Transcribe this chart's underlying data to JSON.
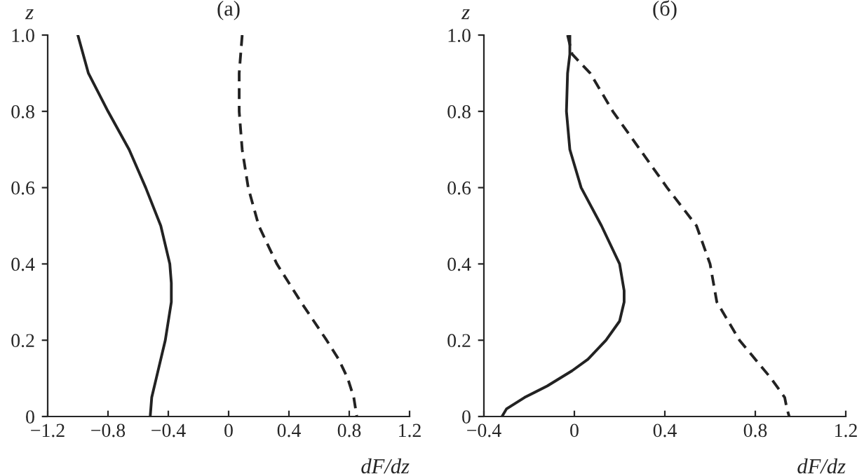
{
  "chart_data": [
    {
      "type": "line",
      "title": "(a)",
      "xlabel": "dF/dz",
      "ylabel": "z",
      "xlim": [
        -1.2,
        1.2
      ],
      "ylim": [
        0,
        1.0
      ],
      "xticks": [
        {
          "value": -1.2,
          "label": "−1.2"
        },
        {
          "value": -0.8,
          "label": "−0.8"
        },
        {
          "value": -0.4,
          "label": "−0.4"
        },
        0,
        0.4,
        0.8,
        1.2
      ],
      "yticks": [
        0,
        0.2,
        0.4,
        0.6,
        0.8,
        {
          "value": 1.0,
          "label": "1.0"
        }
      ],
      "grid": false,
      "legend": false,
      "series": [
        {
          "color": "#222222",
          "line_style": "solid",
          "x": [
            -1.0,
            -0.93,
            -0.8,
            -0.66,
            -0.55,
            -0.45,
            -0.39,
            -0.38,
            -0.38,
            -0.42,
            -0.48,
            -0.51,
            -0.52
          ],
          "values": [
            1.0,
            0.9,
            0.8,
            0.7,
            0.6,
            0.5,
            0.4,
            0.35,
            0.3,
            0.2,
            0.1,
            0.05,
            0
          ]
        },
        {
          "color": "#222222",
          "line_style": "dashed",
          "x": [
            0.09,
            0.07,
            0.07,
            0.09,
            0.13,
            0.2,
            0.32,
            0.48,
            0.65,
            0.73,
            0.79,
            0.83,
            0.85
          ],
          "values": [
            1.0,
            0.9,
            0.8,
            0.7,
            0.6,
            0.5,
            0.4,
            0.3,
            0.2,
            0.15,
            0.1,
            0.05,
            0
          ]
        }
      ]
    },
    {
      "type": "line",
      "title": "(б)",
      "xlabel": "dF/dz",
      "ylabel": "z",
      "xlim": [
        -0.4,
        1.2
      ],
      "ylim": [
        0,
        1.0
      ],
      "xticks": [
        {
          "value": -0.4,
          "label": "−0.4"
        },
        0,
        0.4,
        0.8,
        1.2
      ],
      "yticks": [
        0,
        0.2,
        0.4,
        0.6,
        0.8,
        {
          "value": 1.0,
          "label": "1.0"
        }
      ],
      "grid": false,
      "legend": false,
      "series": [
        {
          "color": "#222222",
          "line_style": "solid",
          "x": [
            -0.02,
            -0.02,
            -0.03,
            -0.035,
            -0.02,
            0.03,
            0.12,
            0.2,
            0.22,
            0.22,
            0.2,
            0.14,
            0.06,
            -0.01,
            -0.12,
            -0.22,
            -0.3,
            -0.32
          ],
          "values": [
            1.0,
            0.95,
            0.9,
            0.8,
            0.7,
            0.6,
            0.5,
            0.4,
            0.33,
            0.3,
            0.25,
            0.2,
            0.15,
            0.12,
            0.08,
            0.05,
            0.02,
            0
          ]
        },
        {
          "color": "#222222",
          "line_style": "dashed",
          "x": [
            -0.03,
            -0.01,
            0.07,
            0.17,
            0.29,
            0.41,
            0.54,
            0.6,
            0.63,
            0.73,
            0.8,
            0.87,
            0.93,
            0.94,
            0.95
          ],
          "values": [
            1.0,
            0.95,
            0.9,
            0.8,
            0.7,
            0.6,
            0.5,
            0.4,
            0.3,
            0.2,
            0.15,
            0.1,
            0.05,
            0.02,
            0
          ]
        }
      ]
    }
  ]
}
